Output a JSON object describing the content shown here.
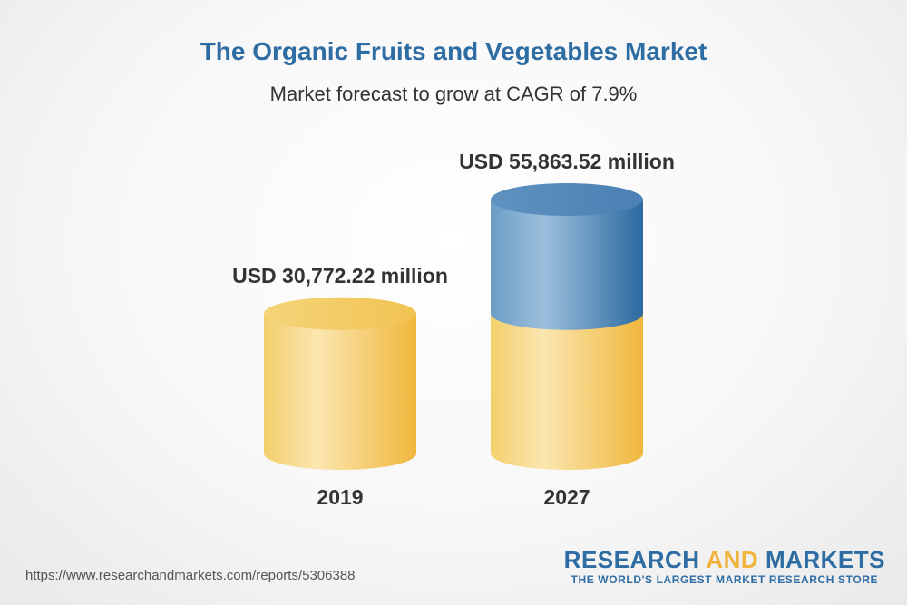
{
  "colors": {
    "title": "#2e6da4",
    "subtitle": "#333333",
    "label": "#333333",
    "segment_old": "#f2c04a",
    "segment_growth": "#3a74a7",
    "brand_research": "#2e6da4",
    "brand_and": "#f0b43c",
    "brand_tagline": "#2e6da4"
  },
  "chart_data": {
    "type": "bar",
    "style": "3d-cylinder",
    "title": "The Organic Fruits and Vegetables Market",
    "subtitle": "Market forecast to grow at CAGR of 7.9%",
    "categories": [
      "2019",
      "2027"
    ],
    "values": [
      30772.22,
      55863.52
    ],
    "value_labels": [
      "USD 30,772.22 million",
      "USD 55,863.52 million"
    ],
    "unit": "USD million",
    "ylim": [
      0,
      60000
    ],
    "grid": false,
    "legend": "none"
  },
  "footer": {
    "url": "https://www.researchandmarkets.com/reports/5306388"
  },
  "brand": {
    "word1": "RESEARCH",
    "word2": "AND",
    "word3": "MARKETS",
    "tagline": "THE WORLD'S LARGEST MARKET RESEARCH STORE"
  }
}
